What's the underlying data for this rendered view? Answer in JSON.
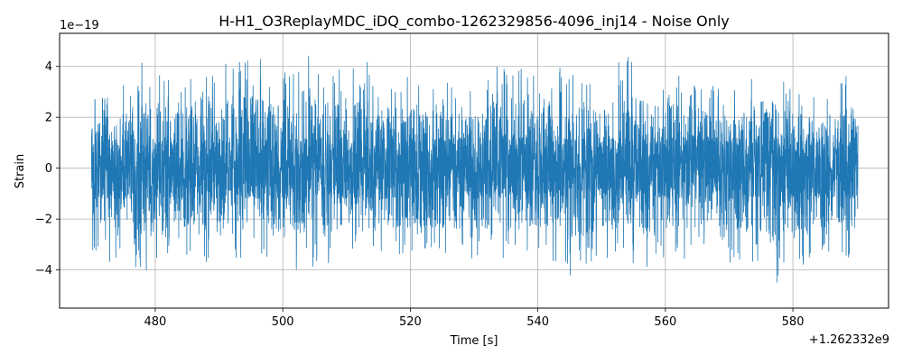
{
  "chart_data": {
    "type": "line",
    "title": "H-H1_O3ReplayMDC_iDQ_combo-1262329856-4096_inj14 - Noise Only",
    "xlabel": "Time [s]",
    "ylabel": "Strain",
    "x_offset_label": "+1.262332e9",
    "y_scale_label": "1e−19",
    "xlim": [
      465.0,
      595.0
    ],
    "ylim": [
      -5.5,
      5.3
    ],
    "x_ticks": [
      480,
      500,
      520,
      540,
      560,
      580
    ],
    "x_tick_labels": [
      "480",
      "500",
      "520",
      "540",
      "560",
      "580"
    ],
    "y_ticks": [
      -4,
      -2,
      0,
      2,
      4
    ],
    "y_tick_labels": [
      "−4",
      "−2",
      "0",
      "2",
      "4"
    ],
    "grid": true,
    "color": "#1f77b4",
    "x_range": [
      470.0,
      590.2
    ],
    "envelope": {
      "x": [
        470.0,
        471.5,
        473.0,
        475.0,
        477.0,
        477.4,
        480.0,
        484.0,
        487.0,
        490.0,
        493.0,
        496.0,
        500.0,
        503.0,
        506.0,
        510.0,
        513.0,
        517.0,
        520.0,
        525.0,
        530.0,
        533.0,
        537.0,
        540.0,
        544.0,
        548.0,
        550.0,
        553.0,
        557.0,
        560.0,
        564.0,
        568.0,
        570.0,
        574.0,
        577.0,
        580.0,
        583.0,
        587.0,
        590.0
      ],
      "ymax": [
        2.7,
        2.9,
        3.5,
        3.3,
        4.5,
        4.7,
        3.8,
        3.6,
        4.2,
        4.2,
        4.5,
        4.4,
        3.7,
        4.8,
        3.9,
        3.9,
        4.2,
        3.7,
        3.7,
        3.4,
        3.2,
        4.0,
        4.0,
        3.6,
        4.2,
        3.6,
        3.3,
        4.7,
        4.0,
        4.0,
        3.8,
        3.2,
        3.0,
        3.8,
        3.6,
        3.5,
        3.0,
        3.4,
        4.0
      ],
      "ymin": [
        -3.3,
        -3.3,
        -3.8,
        -3.5,
        -4.3,
        -5.0,
        -3.9,
        -3.5,
        -3.9,
        -3.3,
        -3.7,
        -3.5,
        -3.7,
        -4.1,
        -4.3,
        -3.3,
        -3.7,
        -3.7,
        -3.6,
        -3.6,
        -3.7,
        -4.2,
        -3.7,
        -3.5,
        -4.3,
        -4.0,
        -3.9,
        -3.6,
        -4.2,
        -3.6,
        -3.7,
        -3.6,
        -3.7,
        -3.7,
        -4.6,
        -4.0,
        -3.8,
        -3.5,
        -3.5
      ]
    },
    "noise_band": [
      -1.2,
      1.2
    ]
  }
}
